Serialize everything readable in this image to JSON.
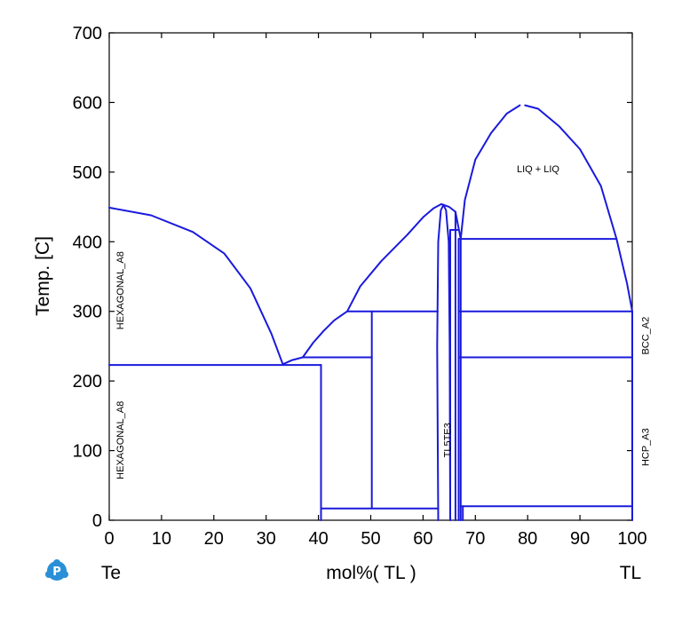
{
  "chart_data": {
    "type": "line",
    "title": "",
    "xlabel": "mol%(  TL  )",
    "ylabel": "Temp.  [C]",
    "xlim": [
      0,
      100
    ],
    "ylim": [
      0,
      700
    ],
    "x_ticks": [
      "0",
      "10",
      "20",
      "30",
      "40",
      "50",
      "60",
      "70",
      "80",
      "90",
      "100"
    ],
    "y_ticks": [
      "0",
      "100",
      "200",
      "300",
      "400",
      "500",
      "600",
      "700"
    ],
    "component_left": "Te",
    "component_right": "TL",
    "region_labels": [
      {
        "text": "HEXAGONAL_A8",
        "x": 2,
        "y": 330,
        "rotate": true
      },
      {
        "text": "HEXAGONAL_A8",
        "x": 2,
        "y": 115,
        "rotate": true
      },
      {
        "text": "LIQ + LIQ",
        "x": 82,
        "y": 500,
        "rotate": false
      },
      {
        "text": "TL5TE3",
        "x": 64.6,
        "y": 115,
        "rotate": true
      },
      {
        "text": "BCC_A2",
        "x": 102.5,
        "y": 265,
        "rotate": true
      },
      {
        "text": "HCP_A3",
        "x": 102.5,
        "y": 105,
        "rotate": true
      }
    ],
    "series": [
      {
        "points": [
          [
            0,
            449
          ],
          [
            8,
            438
          ],
          [
            16,
            414
          ],
          [
            22,
            383
          ],
          [
            27,
            333
          ],
          [
            31,
            268
          ],
          [
            33.2,
            224
          ]
        ]
      },
      {
        "points": [
          [
            33.2,
            224
          ],
          [
            35,
            230
          ],
          [
            37,
            234
          ],
          [
            39,
            255
          ],
          [
            41,
            272
          ],
          [
            43,
            287
          ],
          [
            45.5,
            300
          ]
        ]
      },
      {
        "points": [
          [
            45.5,
            300
          ],
          [
            48,
            336
          ],
          [
            52,
            372
          ],
          [
            57,
            410
          ],
          [
            60,
            435
          ],
          [
            62,
            448
          ],
          [
            63.5,
            454
          ],
          [
            65,
            450
          ],
          [
            66.2,
            443
          ]
        ]
      },
      {
        "points": [
          [
            62.9,
            0
          ],
          [
            62.7,
            250
          ],
          [
            62.9,
            400
          ],
          [
            63.4,
            445
          ],
          [
            63.9,
            453
          ],
          [
            64.4,
            445
          ],
          [
            64.9,
            400
          ],
          [
            65.1,
            250
          ],
          [
            65.2,
            0
          ]
        ]
      },
      {
        "points": [
          [
            67.2,
            404
          ],
          [
            68,
            460
          ],
          [
            70,
            518
          ],
          [
            73,
            556
          ],
          [
            76,
            584
          ],
          [
            78.5,
            596
          ]
        ]
      },
      {
        "points": [
          [
            79.5,
            596
          ],
          [
            82,
            591
          ],
          [
            86,
            566
          ],
          [
            90,
            533
          ],
          [
            94,
            480
          ],
          [
            97,
            404
          ],
          [
            99,
            340
          ],
          [
            100,
            300
          ]
        ]
      },
      {
        "points": [
          [
            0,
            223
          ],
          [
            40.5,
            223
          ]
        ]
      },
      {
        "points": [
          [
            40.5,
            223
          ],
          [
            40.5,
            0
          ]
        ]
      },
      {
        "points": [
          [
            40.5,
            17
          ],
          [
            62.9,
            17
          ]
        ]
      },
      {
        "points": [
          [
            37,
            234
          ],
          [
            50.2,
            234
          ]
        ]
      },
      {
        "points": [
          [
            45.5,
            300
          ],
          [
            62.8,
            300
          ]
        ]
      },
      {
        "points": [
          [
            50.2,
            300
          ],
          [
            50.2,
            17
          ]
        ]
      },
      {
        "points": [
          [
            65.2,
            417
          ],
          [
            65.2,
            0
          ]
        ]
      },
      {
        "points": [
          [
            65.2,
            417
          ],
          [
            66.6,
            417
          ]
        ]
      },
      {
        "points": [
          [
            66.2,
            443
          ],
          [
            67.2,
            404
          ]
        ]
      },
      {
        "points": [
          [
            66.2,
            443
          ],
          [
            66.2,
            0
          ]
        ]
      },
      {
        "points": [
          [
            66.8,
            404
          ],
          [
            66.8,
            0
          ]
        ]
      },
      {
        "points": [
          [
            67.2,
            404
          ],
          [
            67.2,
            0
          ]
        ]
      },
      {
        "points": [
          [
            67.6,
            20
          ],
          [
            67.6,
            0
          ]
        ]
      },
      {
        "points": [
          [
            66.8,
            404
          ],
          [
            97,
            404
          ]
        ]
      },
      {
        "points": [
          [
            66.8,
            300
          ],
          [
            100,
            300
          ]
        ]
      },
      {
        "points": [
          [
            66.8,
            234
          ],
          [
            100,
            234
          ]
        ]
      },
      {
        "points": [
          [
            67.2,
            20
          ],
          [
            100,
            20
          ]
        ]
      },
      {
        "points": [
          [
            100,
            300
          ],
          [
            100,
            0
          ]
        ]
      }
    ]
  }
}
